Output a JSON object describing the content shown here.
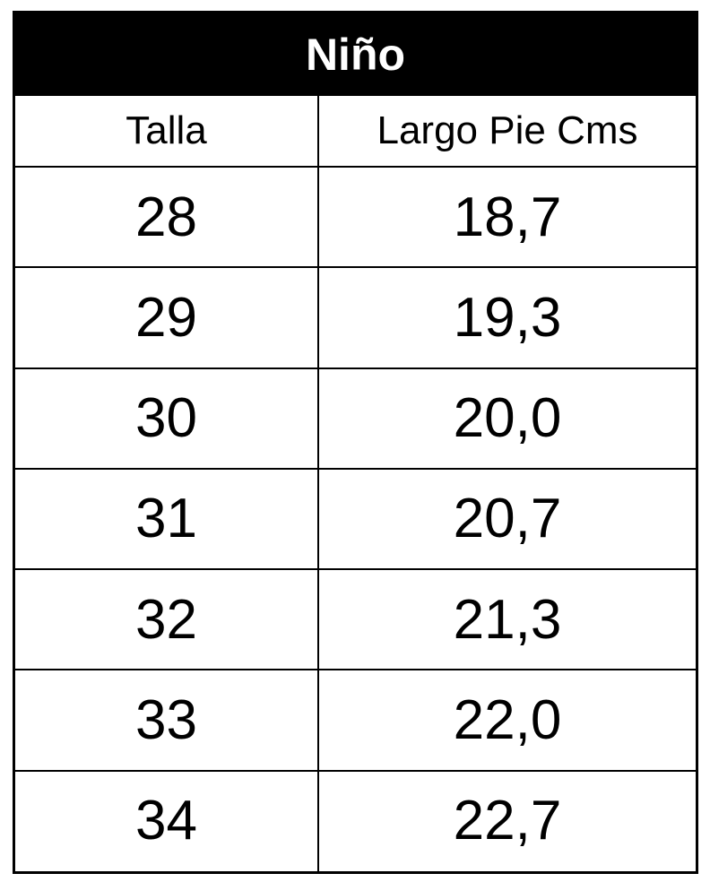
{
  "header": {
    "title": "Niño"
  },
  "table": {
    "columns": [
      "Talla",
      "Largo Pie Cms"
    ],
    "rows": [
      [
        "28",
        "18,7"
      ],
      [
        "29",
        "19,3"
      ],
      [
        "30",
        "20,0"
      ],
      [
        "31",
        "20,7"
      ],
      [
        "32",
        "21,3"
      ],
      [
        "33",
        "22,0"
      ],
      [
        "34",
        "22,7"
      ]
    ]
  }
}
